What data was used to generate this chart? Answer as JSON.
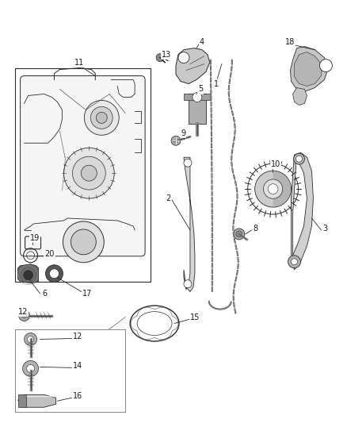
{
  "background_color": "#ffffff",
  "figsize": [
    4.38,
    5.33
  ],
  "dpi": 100,
  "line_color": "#2a2a2a",
  "label_fontsize": 7.0,
  "label_color": "#1a1a1a"
}
